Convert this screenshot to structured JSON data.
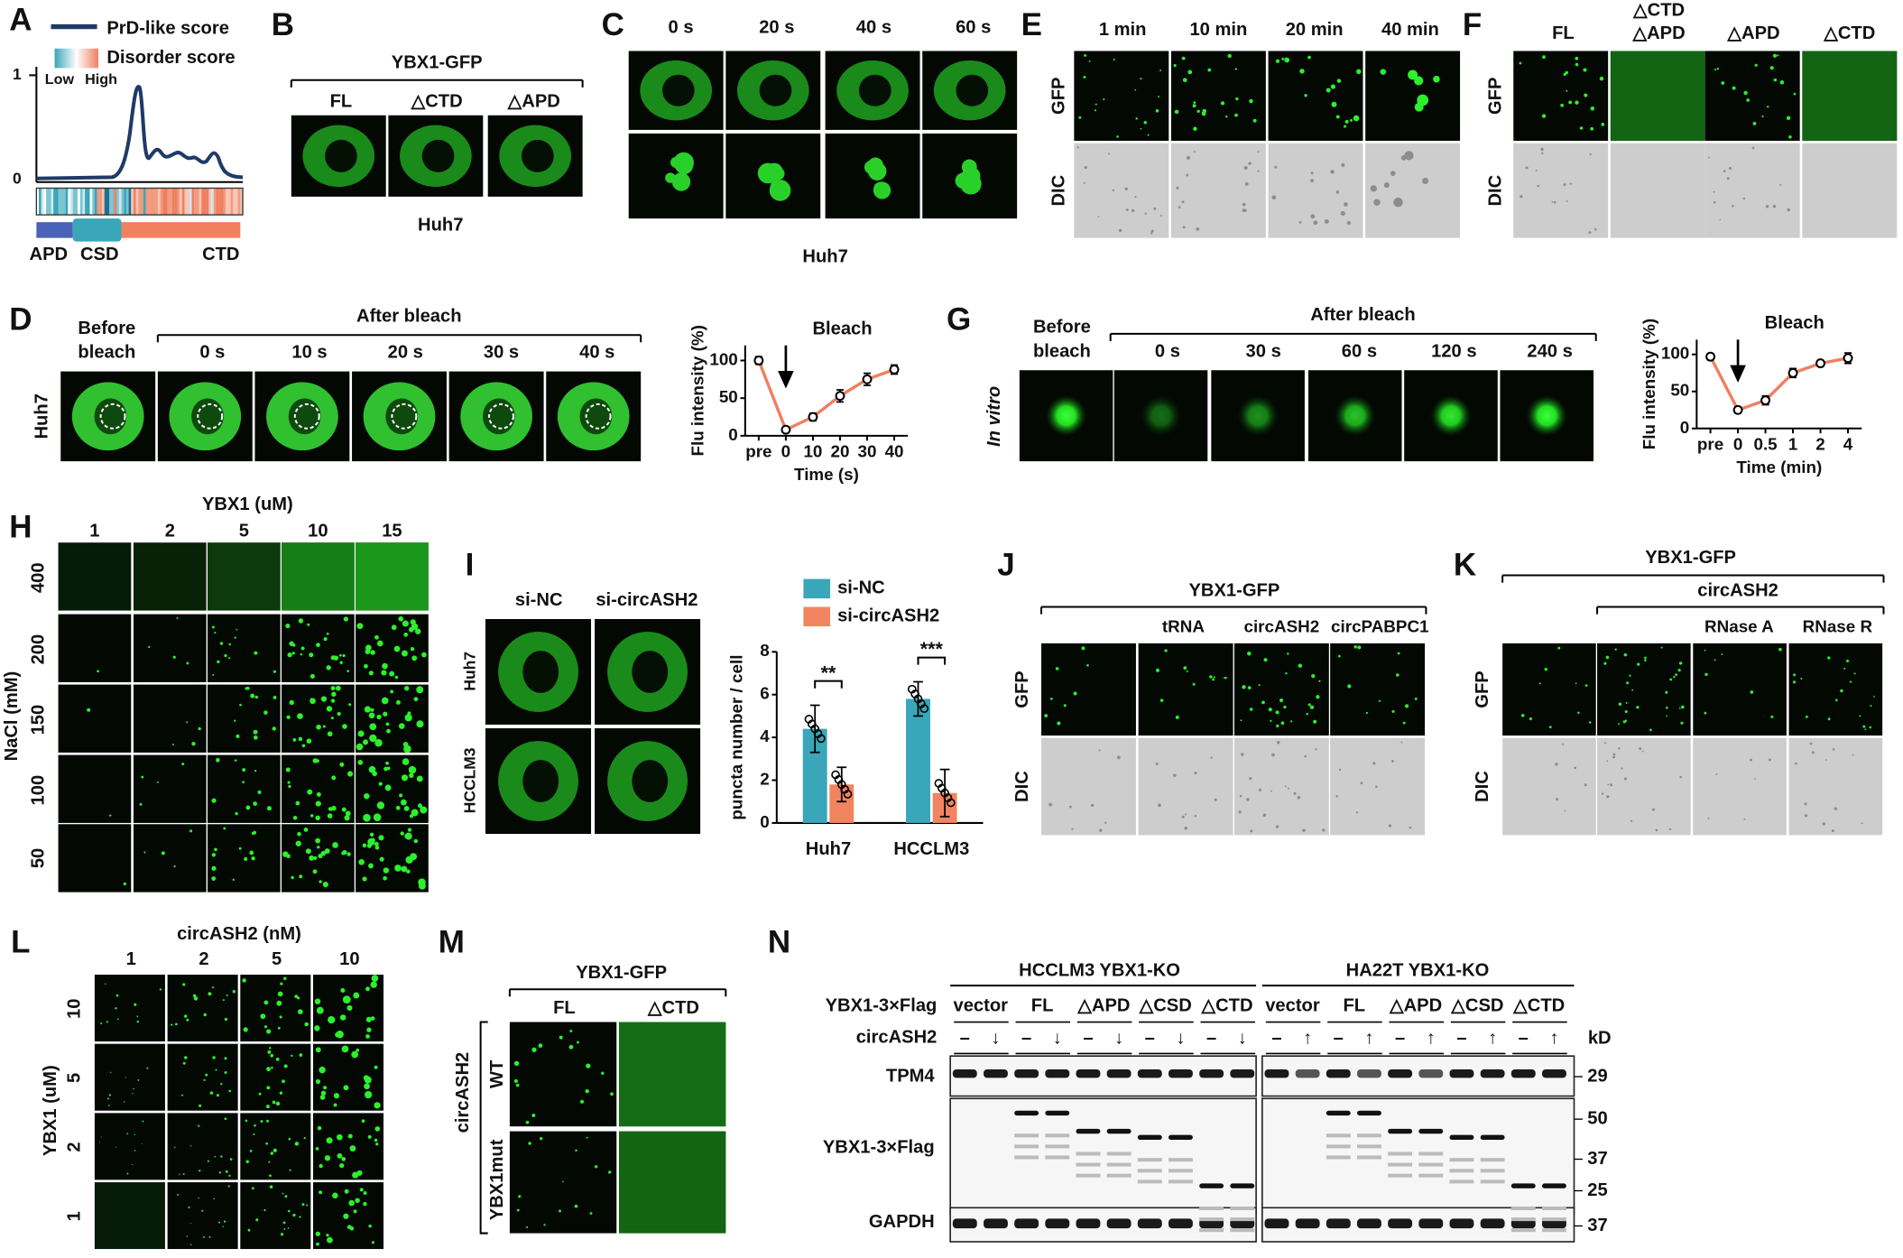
{
  "panels": {
    "A": {
      "label": "A",
      "legend": [
        "PrD-like score",
        "Disorder score"
      ],
      "scale": [
        "Low",
        "High"
      ],
      "axis": [
        "1",
        "0"
      ],
      "domains": [
        "APD",
        "CSD",
        "CTD"
      ]
    },
    "B": {
      "label": "B",
      "title": "YBX1-GFP",
      "columns": [
        "FL",
        "△CTD",
        "△APD"
      ],
      "cell": "Huh7"
    },
    "C": {
      "label": "C",
      "columns": [
        "0 s",
        "20 s",
        "40 s",
        "60 s"
      ],
      "cell": "Huh7"
    },
    "D": {
      "label": "D",
      "before": [
        "Before",
        "bleach"
      ],
      "after": "After bleach",
      "columns": [
        "0 s",
        "10 s",
        "20 s",
        "30 s",
        "40 s"
      ],
      "cell": "Huh7"
    },
    "E": {
      "label": "E",
      "columns": [
        "1 min",
        "10 min",
        "20 min",
        "40 min"
      ],
      "rows": [
        "GFP",
        "DIC"
      ]
    },
    "F": {
      "label": "F",
      "columns": [
        [
          "FL"
        ],
        [
          "△CTD",
          "△APD"
        ],
        [
          "△APD"
        ],
        [
          "△CTD"
        ]
      ],
      "rows": [
        "GFP",
        "DIC"
      ]
    },
    "G": {
      "label": "G",
      "before": [
        "Before",
        "bleach"
      ],
      "after": "After bleach",
      "columns": [
        "0 s",
        "30 s",
        "60 s",
        "120 s",
        "240 s"
      ],
      "condition": "In vitro"
    },
    "H": {
      "label": "H",
      "column_title": "YBX1 (uM)",
      "columns": [
        "1",
        "2",
        "5",
        "10",
        "15"
      ],
      "row_title": "NaCl (mM)",
      "rows": [
        "400",
        "200",
        "150",
        "100",
        "50"
      ]
    },
    "I": {
      "label": "I",
      "columns": [
        "si-NC",
        "si-circASH2"
      ],
      "rows": [
        "Huh7",
        "HCCLM3"
      ]
    },
    "J": {
      "label": "J",
      "title": "YBX1-GFP",
      "columns": [
        "tRNA",
        "circASH2",
        "circPABPC1"
      ],
      "rows": [
        "GFP",
        "DIC"
      ]
    },
    "K": {
      "label": "K",
      "title": "YBX1-GFP",
      "subtitle": "circASH2",
      "columns": [
        "RNase A",
        "RNase R"
      ],
      "rows": [
        "GFP",
        "DIC"
      ]
    },
    "L": {
      "label": "L",
      "column_title": "circASH2 (nM)",
      "columns": [
        "1",
        "2",
        "5",
        "10"
      ],
      "row_title": "YBX1 (uM)",
      "rows": [
        "10",
        "5",
        "2",
        "1"
      ]
    },
    "M": {
      "label": "M",
      "title": "YBX1-GFP",
      "columns": [
        "FL",
        "△CTD"
      ],
      "row_title": "circASH2",
      "rows": [
        "WT",
        "YBX1mut"
      ]
    },
    "N": {
      "label": "N",
      "groups": [
        "HCCLM3 YBX1-KO",
        "HA22T YBX1-KO"
      ],
      "row_titles": [
        "YBX1-3×Flag",
        "circASH2"
      ],
      "lanes": [
        [
          "vector",
          "FL",
          "△APD",
          "△CSD",
          "△CTD"
        ],
        [
          "vector",
          "FL",
          "△APD",
          "△CSD",
          "△CTD"
        ]
      ],
      "signs": [
        [
          "–",
          "↓",
          "–",
          "↓",
          "–",
          "↓",
          "–",
          "↓",
          "–",
          "↓"
        ],
        [
          "–",
          "↑",
          "–",
          "↑",
          "–",
          "↑",
          "–",
          "↑",
          "–",
          "↑"
        ]
      ],
      "unit": "kD",
      "blots": [
        "TPM4",
        "YBX1-3×Flag",
        "GAPDH"
      ],
      "markers": [
        "29",
        "50",
        "37",
        "25",
        "37"
      ]
    }
  },
  "chart_data": [
    {
      "type": "line",
      "ylabel": "Flu intensity (%)",
      "xlabel": "Time (s)",
      "annotation": "Bleach",
      "categories": [
        "pre",
        "0",
        "10",
        "20",
        "30",
        "40"
      ],
      "series": [
        {
          "color": "#f07f5f",
          "values": [
            100,
            8,
            25,
            53,
            75,
            88
          ],
          "errors": [
            5,
            3,
            5,
            8,
            8,
            6
          ]
        }
      ],
      "ylim": [
        0,
        120
      ],
      "yticks": [
        0,
        50,
        100
      ]
    },
    {
      "type": "line",
      "ylabel": "Flu intensity (%)",
      "xlabel": "Time (min)",
      "annotation": "Bleach",
      "categories": [
        "pre",
        "0",
        "0.5",
        "1",
        "2",
        "4"
      ],
      "series": [
        {
          "color": "#f07f5f",
          "values": [
            97,
            25,
            38,
            75,
            88,
            95
          ],
          "errors": [
            4,
            4,
            6,
            6,
            4,
            7
          ]
        }
      ],
      "ylim": [
        0,
        120
      ],
      "yticks": [
        0,
        50,
        100
      ]
    },
    {
      "type": "bar",
      "ylabel": "puncta number / cell",
      "categories": [
        "Huh7",
        "HCCLM3"
      ],
      "series": [
        {
          "name": "si-NC",
          "color": "#3aa6b9",
          "values": [
            4.4,
            5.8
          ],
          "errors": [
            1.1,
            0.8
          ]
        },
        {
          "name": "si-circASH2",
          "color": "#f28460",
          "values": [
            1.8,
            1.4
          ],
          "errors": [
            0.8,
            1.1
          ]
        }
      ],
      "annotations": [
        "**",
        "***"
      ],
      "ylim": [
        0,
        8
      ],
      "yticks": [
        0,
        2,
        4,
        6,
        8
      ]
    }
  ]
}
